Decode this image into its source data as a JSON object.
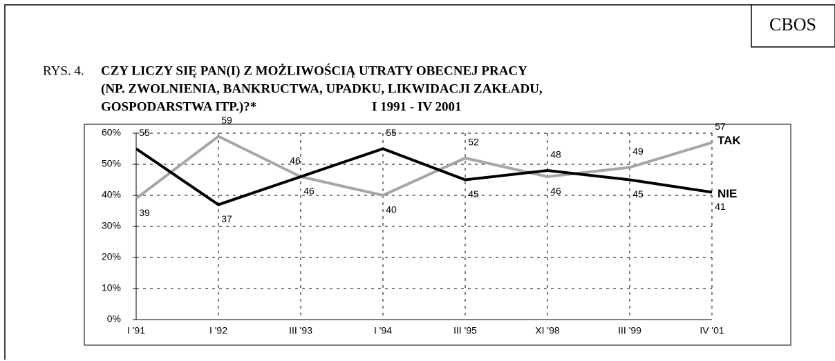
{
  "badge": "CBOS",
  "chart_data": {
    "type": "line",
    "figure_label": "RYS. 4.",
    "title": [
      "CZY LICZY SIĘ PAN(I) Z MOŻLIWOŚCIĄ UTRATY OBECNEJ PRACY",
      "(NP. ZWOLNIENIA, BANKRUCTWA, UPADKU, LIKWIDACJI ZAKŁADU,",
      "GOSPODARSTWA ITP.)?*"
    ],
    "period": "I 1991 - IV 2001",
    "categories": [
      "I '91",
      "I '92",
      "III '93",
      "I '94",
      "III '95",
      "XI '98",
      "III '99",
      "IV '01"
    ],
    "series": [
      {
        "name": "NIE",
        "color": "#000000",
        "values": [
          55,
          37,
          46,
          55,
          45,
          48,
          45,
          41
        ]
      },
      {
        "name": "TAK",
        "color": "#a6a6a6",
        "values": [
          39,
          59,
          46,
          40,
          52,
          46,
          49,
          57
        ]
      }
    ],
    "ylim": [
      0,
      60
    ],
    "yticks": [
      {
        "value": 0,
        "label": "0%"
      },
      {
        "value": 10,
        "label": "10%"
      },
      {
        "value": 20,
        "label": "20%"
      },
      {
        "value": 30,
        "label": "30%"
      },
      {
        "value": 40,
        "label": "40%"
      },
      {
        "value": 50,
        "label": "50%"
      },
      {
        "value": 60,
        "label": "60%"
      }
    ],
    "grid": true
  }
}
